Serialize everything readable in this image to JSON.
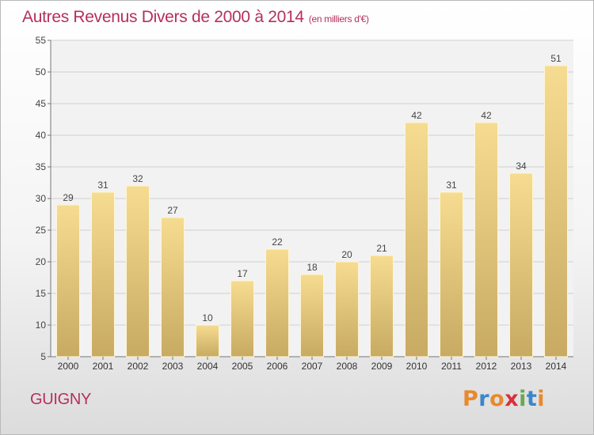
{
  "chart_data": {
    "type": "bar",
    "title": "Autres Revenus Divers de 2000 à 2014",
    "subtitle": "(en milliers d'€)",
    "categories": [
      "2000",
      "2001",
      "2002",
      "2003",
      "2004",
      "2005",
      "2006",
      "2007",
      "2008",
      "2009",
      "2010",
      "2011",
      "2012",
      "2013",
      "2014"
    ],
    "values": [
      29,
      31,
      32,
      27,
      10,
      17,
      22,
      18,
      20,
      21,
      42,
      31,
      42,
      34,
      51
    ],
    "ylim": [
      5,
      55
    ],
    "yticks": [
      5,
      10,
      15,
      20,
      25,
      30,
      35,
      40,
      45,
      50,
      55
    ],
    "grid": true,
    "bar_color_top": "#f6dc90",
    "bar_color_bottom": "#c8aa62"
  },
  "footer": {
    "commune": "GUIGNY",
    "logo_text": "Proxiti",
    "logo_colors": [
      "#e8892c",
      "#3b86c8",
      "#e8892c",
      "#d8313c",
      "#6aa84f",
      "#3b86c8",
      "#e8892c"
    ]
  }
}
